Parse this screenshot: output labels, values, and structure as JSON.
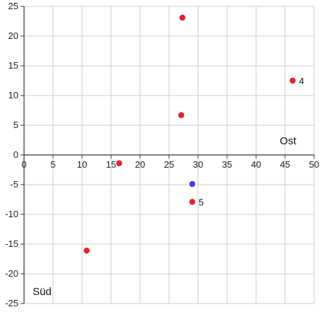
{
  "chart_data": {
    "type": "scatter",
    "xlim": [
      0,
      50
    ],
    "ylim": [
      -25,
      25
    ],
    "x_ticks": [
      0,
      5,
      10,
      15,
      20,
      25,
      30,
      35,
      40,
      45,
      50
    ],
    "y_ticks": [
      -25,
      -20,
      -15,
      -10,
      -5,
      0,
      5,
      10,
      15,
      20,
      25
    ],
    "grid": true,
    "points": [
      {
        "x": 27.3,
        "y": 23.1,
        "color": "#e8202a",
        "label": ""
      },
      {
        "x": 46.3,
        "y": 12.5,
        "color": "#e8202a",
        "label": "4"
      },
      {
        "x": 27.1,
        "y": 6.7,
        "color": "#e8202a",
        "label": ""
      },
      {
        "x": 16.4,
        "y": -1.4,
        "color": "#e8202a",
        "label": ""
      },
      {
        "x": 29.0,
        "y": -4.9,
        "color": "#3b3bff",
        "label": ""
      },
      {
        "x": 29.0,
        "y": -7.9,
        "color": "#e8202a",
        "label": "5"
      },
      {
        "x": 10.8,
        "y": -16.1,
        "color": "#e8202a",
        "label": ""
      }
    ],
    "annotations": [
      {
        "text": "Ost",
        "x": 45.5,
        "y": 2.4
      },
      {
        "text": "Süd",
        "x": 3.1,
        "y": -23.0
      }
    ]
  }
}
